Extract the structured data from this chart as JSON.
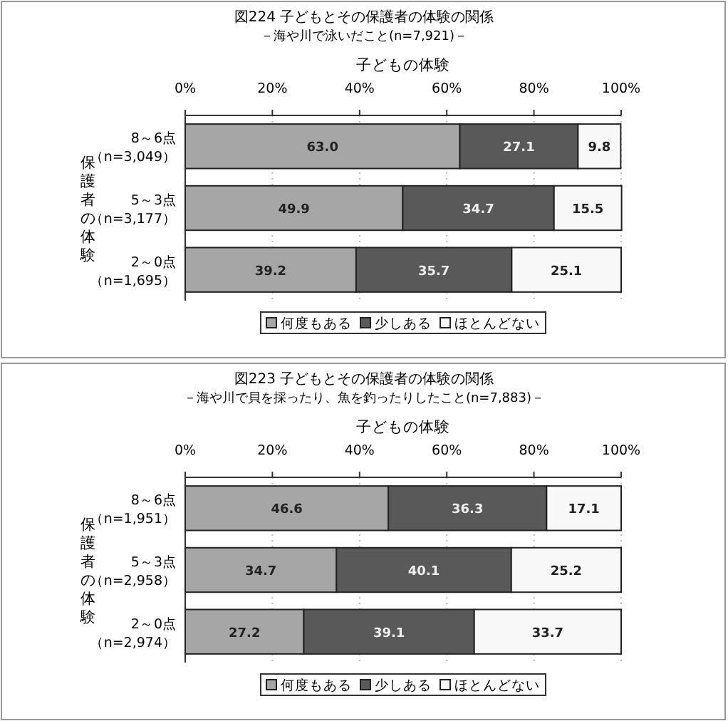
{
  "chart_data": [
    {
      "type": "bar",
      "title": "図224  子どもとその保護者の体験の関係",
      "subtitle": "－海や川で泳いだこと(n=7,921)－",
      "xlabel": "子どもの体験",
      "ylabel": "保護者の体験",
      "categories": [
        "8～6点（n=3,049）",
        "5～3点（n=3,177）",
        "2～0点（n=1,695）"
      ],
      "series": [
        {
          "name": "何度もある",
          "color": "#a6a6a6",
          "values": [
            63.0,
            49.9,
            39.2
          ],
          "value_labels": [
            "63.0",
            "49.9",
            "39.2"
          ]
        },
        {
          "name": "少しある",
          "color": "#595959",
          "values": [
            27.1,
            34.7,
            35.7
          ],
          "value_labels": [
            "27.1",
            "34.7",
            "35.7"
          ]
        },
        {
          "name": "ほとんどない",
          "color": "#f8f8f8",
          "values": [
            9.8,
            15.5,
            25.1
          ],
          "value_labels": [
            "9.8",
            "15.5",
            "25.1"
          ]
        }
      ],
      "stacked": true,
      "orientation": "horizontal",
      "xlim": [
        0,
        100
      ],
      "xticks": [
        {
          "value": 0,
          "label": "0%"
        },
        {
          "value": 20,
          "label": "20%"
        },
        {
          "value": 40,
          "label": "40%"
        },
        {
          "value": 60,
          "label": "60%"
        },
        {
          "value": 80,
          "label": "80%"
        },
        {
          "value": 100,
          "label": "100%"
        }
      ],
      "legend": "bottom",
      "grid": "x"
    },
    {
      "type": "bar",
      "title": "図223  子どもとその保護者の体験の関係",
      "subtitle": "－海や川で貝を採ったり、魚を釣ったりしたこと(n=7,883)－",
      "xlabel": "子どもの体験",
      "ylabel": "保護者の体験",
      "categories": [
        "8～6点（n=1,951）",
        "5～3点（n=2,958）",
        "2～0点（n=2,974）"
      ],
      "series": [
        {
          "name": "何度もある",
          "color": "#a6a6a6",
          "values": [
            46.6,
            34.7,
            27.2
          ],
          "value_labels": [
            "46.6",
            "34.7",
            "27.2"
          ]
        },
        {
          "name": "少しある",
          "color": "#595959",
          "values": [
            36.3,
            40.1,
            39.1
          ],
          "value_labels": [
            "36.3",
            "40.1",
            "39.1"
          ]
        },
        {
          "name": "ほとんどない",
          "color": "#f8f8f8",
          "values": [
            17.1,
            25.2,
            33.7
          ],
          "value_labels": [
            "17.1",
            "25.2",
            "33.7"
          ]
        }
      ],
      "stacked": true,
      "orientation": "horizontal",
      "xlim": [
        0,
        100
      ],
      "xticks": [
        {
          "value": 0,
          "label": "0%"
        },
        {
          "value": 20,
          "label": "20%"
        },
        {
          "value": 40,
          "label": "40%"
        },
        {
          "value": 60,
          "label": "60%"
        },
        {
          "value": 80,
          "label": "80%"
        },
        {
          "value": 100,
          "label": "100%"
        }
      ],
      "legend": "bottom",
      "grid": "x"
    }
  ]
}
